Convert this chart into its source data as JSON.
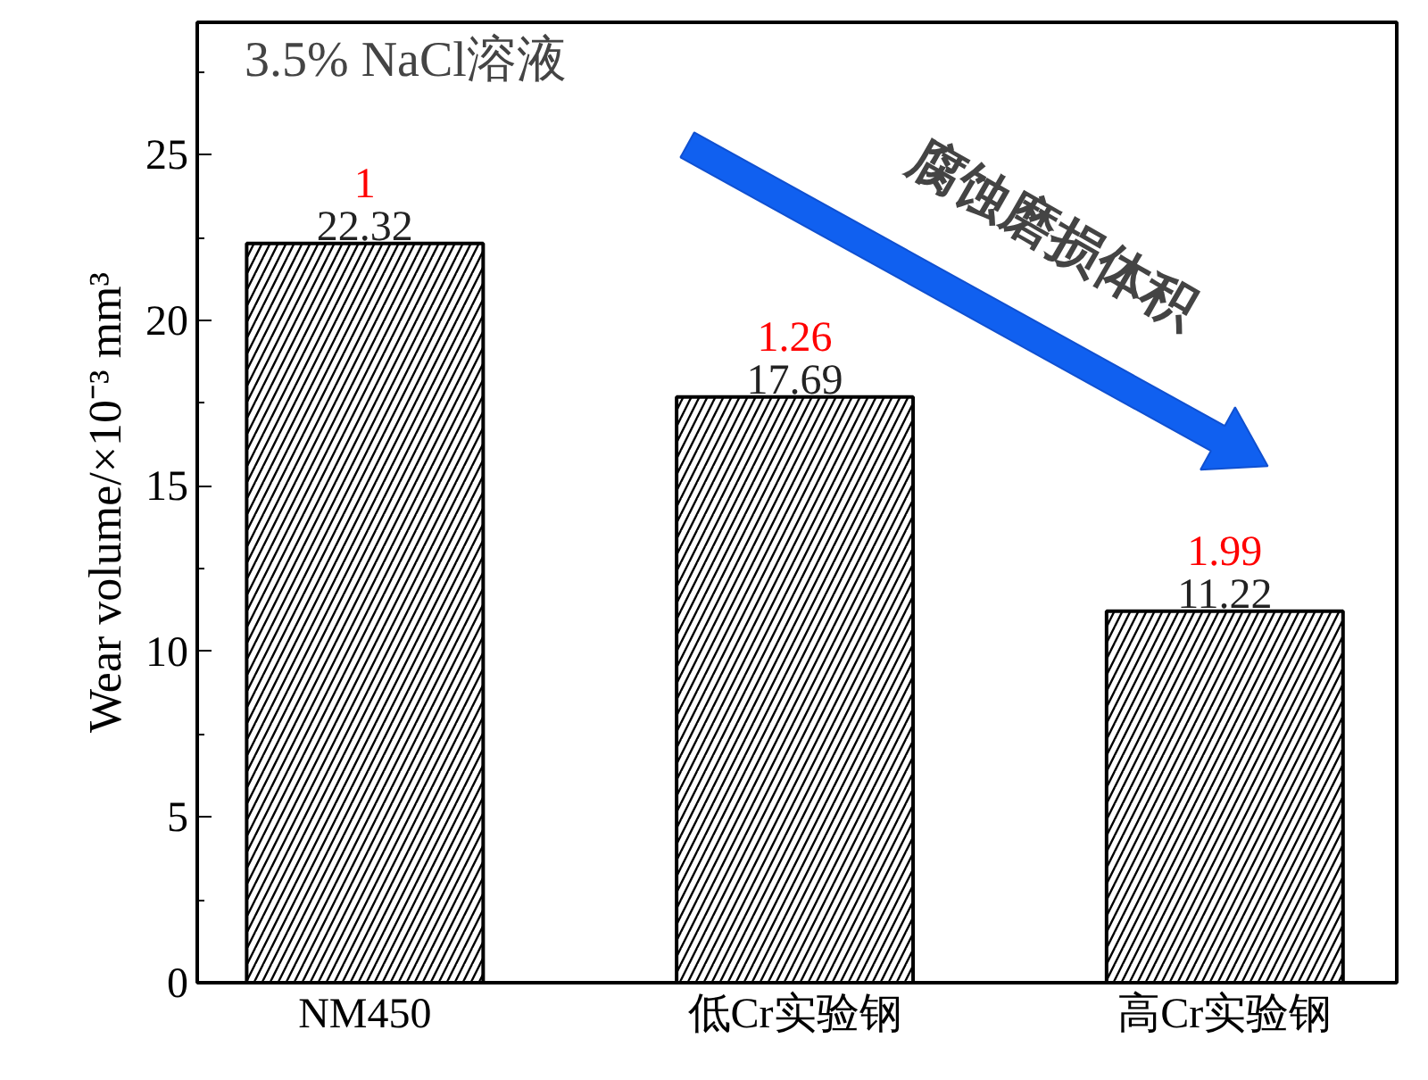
{
  "chart_data": {
    "type": "bar",
    "ylabel": "Wear volume/×10⁻³ mm³",
    "categories": [
      "NM450",
      "低Cr实验钢",
      "高Cr实验钢"
    ],
    "values": [
      22.32,
      17.69,
      11.22
    ],
    "color": "#000000",
    "data_labels": true,
    "ylim": [
      0,
      29
    ],
    "yticks": [
      0,
      5,
      10,
      15,
      20,
      25
    ],
    "grid": false,
    "annotations": [
      "3.5% NaCl溶液",
      "腐蚀磨损体积",
      {
        "text": "1",
        "x": "NM450",
        "y": 22.32
      },
      {
        "text": "1.26",
        "x": "低Cr实验钢",
        "y": 17.69
      },
      {
        "text": "1.99",
        "x": "高Cr实验钢",
        "y": 11.22
      }
    ]
  }
}
